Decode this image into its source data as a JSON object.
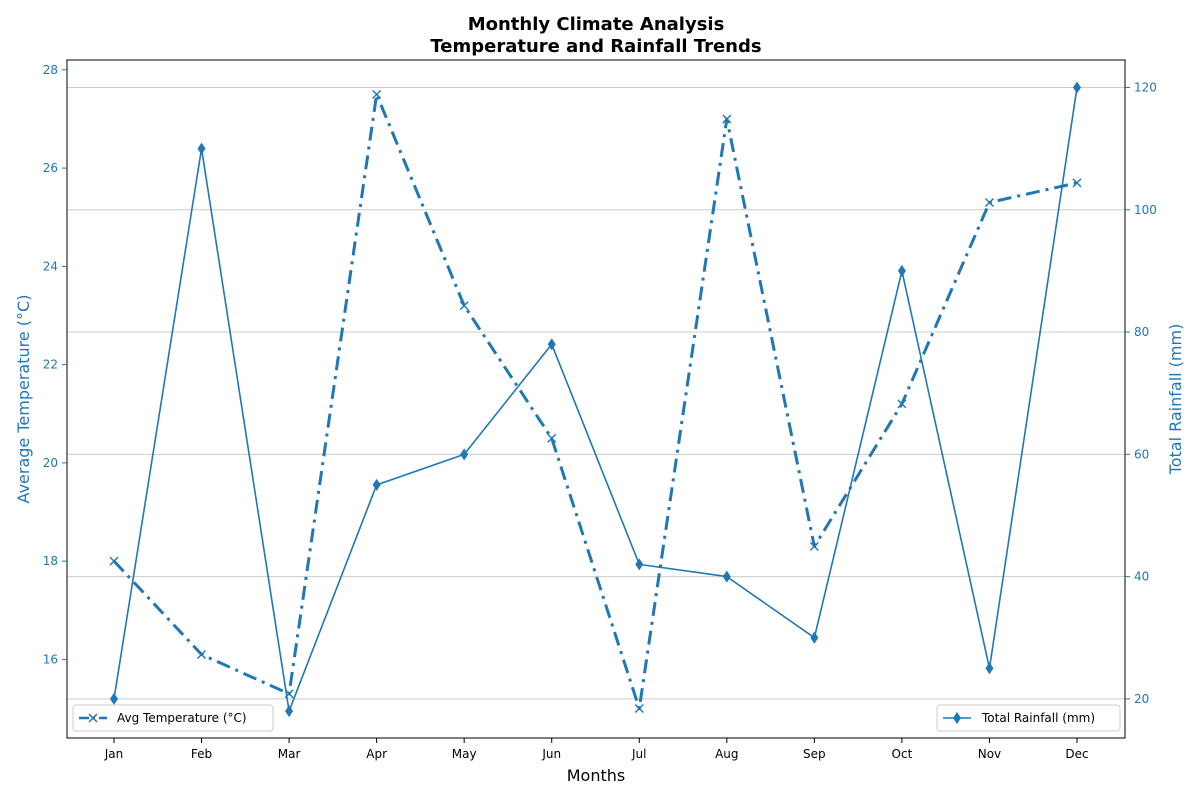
{
  "chart_data": {
    "type": "line",
    "title": "Monthly Climate Analysis",
    "subtitle": "Temperature and Rainfall Trends",
    "xlabel": "Months",
    "ylabel_left": "Average Temperature (°C)",
    "ylabel_right": "Total Rainfall (mm)",
    "categories": [
      "Jan",
      "Feb",
      "Mar",
      "Apr",
      "May",
      "Jun",
      "Jul",
      "Aug",
      "Sep",
      "Oct",
      "Nov",
      "Dec"
    ],
    "ylim_left": [
      14.4,
      28.2
    ],
    "ylim_right": [
      13.6,
      124.5
    ],
    "yticks_left": [
      16,
      18,
      20,
      22,
      24,
      26,
      28
    ],
    "yticks_right": [
      20,
      40,
      60,
      80,
      100,
      120
    ],
    "grid": "horizontal (right axis)",
    "series": [
      {
        "name": "Avg Temperature (°C)",
        "axis": "left",
        "marker": "x",
        "line_style": "dash-dot",
        "color": "#1f77b4",
        "values": [
          18.0,
          16.1,
          15.3,
          27.5,
          23.2,
          20.5,
          15.0,
          27.0,
          18.3,
          21.2,
          25.3,
          25.7
        ]
      },
      {
        "name": "Total Rainfall (mm)",
        "axis": "right",
        "marker": "diamond",
        "line_style": "solid",
        "color": "#1f77b4",
        "values": [
          20,
          110,
          18,
          55,
          60,
          78,
          42,
          40,
          30,
          90,
          25,
          120
        ]
      }
    ],
    "legend": [
      {
        "label": "Avg Temperature (°C)",
        "placement": "bottom-left"
      },
      {
        "label": "Total Rainfall (mm)",
        "placement": "bottom-right"
      }
    ]
  }
}
